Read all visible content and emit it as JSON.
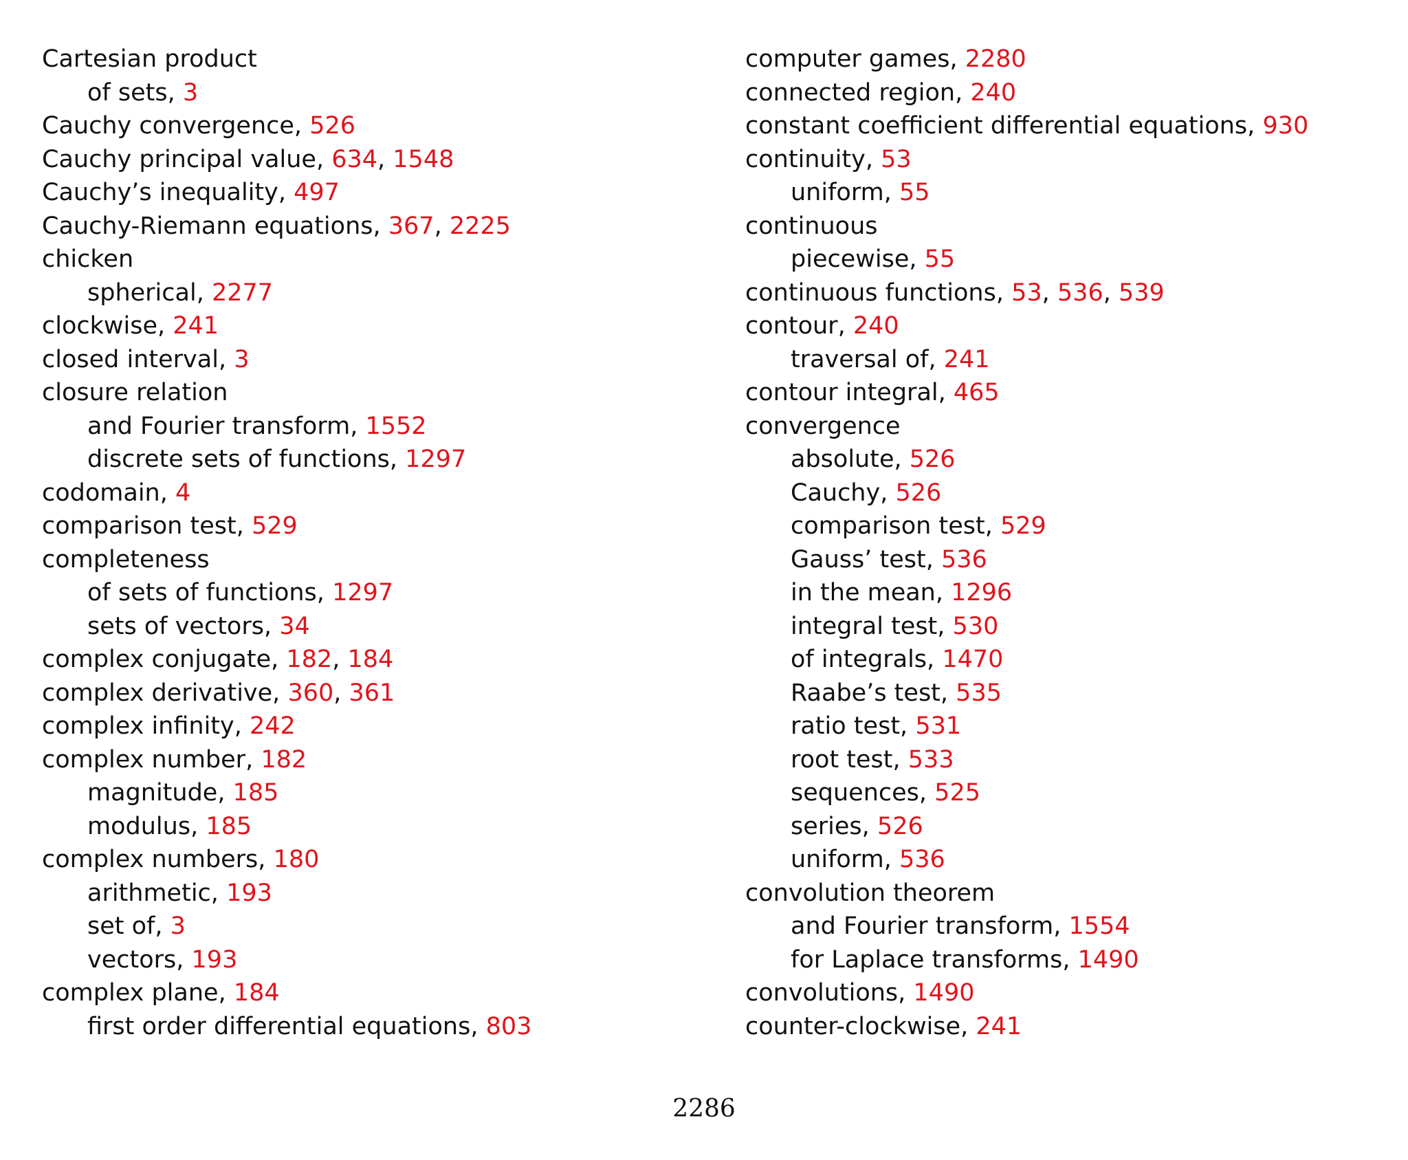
{
  "index": {
    "left_column": [
      {
        "term": "Cartesian product",
        "level": 0,
        "pages": []
      },
      {
        "term": "of sets",
        "level": 1,
        "pages": [
          "3"
        ]
      },
      {
        "term": "Cauchy convergence",
        "level": 0,
        "pages": [
          "526"
        ]
      },
      {
        "term": "Cauchy principal value",
        "level": 0,
        "pages": [
          "634",
          "1548"
        ]
      },
      {
        "term": "Cauchy’s inequality",
        "level": 0,
        "pages": [
          "497"
        ]
      },
      {
        "term": "Cauchy-Riemann equations",
        "level": 0,
        "pages": [
          "367",
          "2225"
        ]
      },
      {
        "term": "chicken",
        "level": 0,
        "pages": []
      },
      {
        "term": "spherical",
        "level": 1,
        "pages": [
          "2277"
        ]
      },
      {
        "term": "clockwise",
        "level": 0,
        "pages": [
          "241"
        ]
      },
      {
        "term": "closed interval",
        "level": 0,
        "pages": [
          "3"
        ]
      },
      {
        "term": "closure relation",
        "level": 0,
        "pages": []
      },
      {
        "term": "and Fourier transform",
        "level": 1,
        "pages": [
          "1552"
        ]
      },
      {
        "term": "discrete sets of functions",
        "level": 1,
        "pages": [
          "1297"
        ]
      },
      {
        "term": "codomain",
        "level": 0,
        "pages": [
          "4"
        ]
      },
      {
        "term": "comparison test",
        "level": 0,
        "pages": [
          "529"
        ]
      },
      {
        "term": "completeness",
        "level": 0,
        "pages": []
      },
      {
        "term": "of sets of functions",
        "level": 1,
        "pages": [
          "1297"
        ]
      },
      {
        "term": "sets of vectors",
        "level": 1,
        "pages": [
          "34"
        ]
      },
      {
        "term": "complex conjugate",
        "level": 0,
        "pages": [
          "182",
          "184"
        ]
      },
      {
        "term": "complex derivative",
        "level": 0,
        "pages": [
          "360",
          "361"
        ]
      },
      {
        "term": "complex infinity",
        "level": 0,
        "pages": [
          "242"
        ]
      },
      {
        "term": "complex number",
        "level": 0,
        "pages": [
          "182"
        ]
      },
      {
        "term": "magnitude",
        "level": 1,
        "pages": [
          "185"
        ]
      },
      {
        "term": "modulus",
        "level": 1,
        "pages": [
          "185"
        ]
      },
      {
        "term": "complex numbers",
        "level": 0,
        "pages": [
          "180"
        ]
      },
      {
        "term": "arithmetic",
        "level": 1,
        "pages": [
          "193"
        ]
      },
      {
        "term": "set of",
        "level": 1,
        "pages": [
          "3"
        ]
      },
      {
        "term": "vectors",
        "level": 1,
        "pages": [
          "193"
        ]
      },
      {
        "term": "complex plane",
        "level": 0,
        "pages": [
          "184"
        ]
      },
      {
        "term": "first order differential equations",
        "level": 1,
        "pages": [
          "803"
        ]
      }
    ],
    "right_column": [
      {
        "term": "computer games",
        "level": 0,
        "pages": [
          "2280"
        ]
      },
      {
        "term": "connected region",
        "level": 0,
        "pages": [
          "240"
        ]
      },
      {
        "term": "constant coefficient differential equations",
        "level": 0,
        "pages": [
          "930"
        ]
      },
      {
        "term": "continuity",
        "level": 0,
        "pages": [
          "53"
        ]
      },
      {
        "term": "uniform",
        "level": 1,
        "pages": [
          "55"
        ]
      },
      {
        "term": "continuous",
        "level": 0,
        "pages": []
      },
      {
        "term": "piecewise",
        "level": 1,
        "pages": [
          "55"
        ]
      },
      {
        "term": "continuous functions",
        "level": 0,
        "pages": [
          "53",
          "536",
          "539"
        ]
      },
      {
        "term": "contour",
        "level": 0,
        "pages": [
          "240"
        ]
      },
      {
        "term": "traversal of",
        "level": 1,
        "pages": [
          "241"
        ]
      },
      {
        "term": "contour integral",
        "level": 0,
        "pages": [
          "465"
        ]
      },
      {
        "term": "convergence",
        "level": 0,
        "pages": []
      },
      {
        "term": "absolute",
        "level": 1,
        "pages": [
          "526"
        ]
      },
      {
        "term": "Cauchy",
        "level": 1,
        "pages": [
          "526"
        ]
      },
      {
        "term": "comparison test",
        "level": 1,
        "pages": [
          "529"
        ]
      },
      {
        "term": "Gauss’ test",
        "level": 1,
        "pages": [
          "536"
        ]
      },
      {
        "term": "in the mean",
        "level": 1,
        "pages": [
          "1296"
        ]
      },
      {
        "term": "integral test",
        "level": 1,
        "pages": [
          "530"
        ]
      },
      {
        "term": "of integrals",
        "level": 1,
        "pages": [
          "1470"
        ]
      },
      {
        "term": "Raabe’s test",
        "level": 1,
        "pages": [
          "535"
        ]
      },
      {
        "term": "ratio test",
        "level": 1,
        "pages": [
          "531"
        ]
      },
      {
        "term": "root test",
        "level": 1,
        "pages": [
          "533"
        ]
      },
      {
        "term": "sequences",
        "level": 1,
        "pages": [
          "525"
        ]
      },
      {
        "term": "series",
        "level": 1,
        "pages": [
          "526"
        ]
      },
      {
        "term": "uniform",
        "level": 1,
        "pages": [
          "536"
        ]
      },
      {
        "term": "convolution theorem",
        "level": 0,
        "pages": []
      },
      {
        "term": "and Fourier transform",
        "level": 1,
        "pages": [
          "1554"
        ]
      },
      {
        "term": "for Laplace transforms",
        "level": 1,
        "pages": [
          "1490"
        ]
      },
      {
        "term": "convolutions",
        "level": 0,
        "pages": [
          "1490"
        ]
      },
      {
        "term": "counter-clockwise",
        "level": 0,
        "pages": [
          "241"
        ]
      }
    ]
  },
  "footer": {
    "page_number": "2286"
  },
  "colors": {
    "link": "#e0141c",
    "text": "#111111",
    "background": "#ffffff"
  }
}
